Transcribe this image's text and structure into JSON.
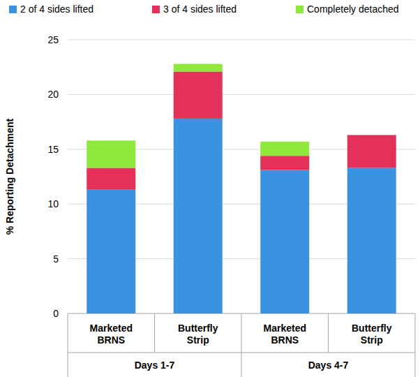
{
  "chart_data": {
    "type": "bar",
    "stacked": true,
    "grid": true,
    "legend": "top",
    "y_label": "% Reporting Detachment",
    "categories": [
      "Marketed BRNS",
      "Butterfly Strip",
      "Marketed BRNS",
      "Butterfly Strip"
    ],
    "category_groups": [
      "Days 1-7",
      "Days 1-7",
      "Days 4-7",
      "Days 4-7"
    ],
    "series": [
      {
        "name": "2 of 4 sides lifted",
        "color": "#3a92e0",
        "values": [
          11.3,
          17.8,
          13.1,
          13.3
        ]
      },
      {
        "name": "3 of 4 sides lifted",
        "color": "#e3315a",
        "values": [
          2.0,
          4.3,
          1.3,
          3.0
        ]
      },
      {
        "name": "Completely detached",
        "color": "#8fe83c",
        "values": [
          2.5,
          0.7,
          1.3,
          0
        ]
      }
    ],
    "ylim": [
      0,
      25
    ],
    "yticks": [
      0,
      5,
      10,
      15,
      20,
      25
    ]
  }
}
